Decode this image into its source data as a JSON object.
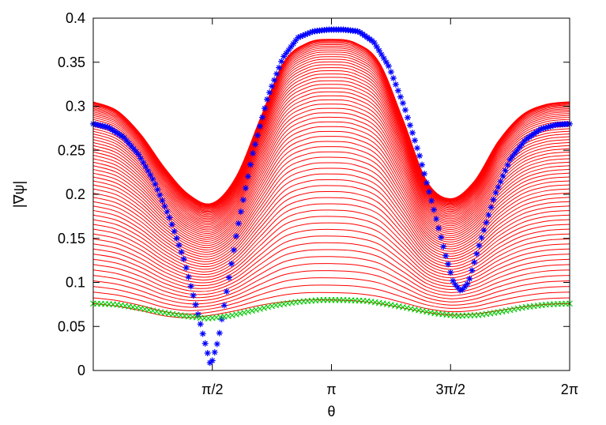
{
  "chart_data": {
    "type": "line",
    "title": "",
    "xlabel": "θ",
    "ylabel": "|∇ψ|",
    "xlim": [
      0,
      6.283185307179586
    ],
    "ylim": [
      0,
      0.4
    ],
    "grid": false,
    "legend": "none",
    "x_ticks": [
      {
        "value": 1.5707963267948966,
        "label": "π/2"
      },
      {
        "value": 3.141592653589793,
        "label": "π"
      },
      {
        "value": 4.71238898038469,
        "label": "3π/2"
      },
      {
        "value": 6.283185307179586,
        "label": "2π"
      }
    ],
    "y_ticks": [
      {
        "value": 0,
        "label": "0"
      },
      {
        "value": 0.05,
        "label": "0.05"
      },
      {
        "value": 0.1,
        "label": "0.1"
      },
      {
        "value": 0.15,
        "label": "0.15"
      },
      {
        "value": 0.2,
        "label": "0.2"
      },
      {
        "value": 0.25,
        "label": "0.25"
      },
      {
        "value": 0.3,
        "label": "0.3"
      },
      {
        "value": 0.35,
        "label": "0.35"
      },
      {
        "value": 0.4,
        "label": "0.4"
      }
    ],
    "colors": {
      "family": "#ff0000",
      "blue_markers": "#0000ff",
      "green_markers": "#00cc00",
      "frame": "#000000"
    },
    "family_curves": {
      "count": 60,
      "x": [
        0,
        0.314,
        0.628,
        0.942,
        1.257,
        1.571,
        1.885,
        2.199,
        2.513,
        2.827,
        3.142,
        3.456,
        3.77,
        4.084,
        4.398,
        4.712,
        5.027,
        5.341,
        5.655,
        5.969,
        6.283
      ],
      "lowest": [
        0.076,
        0.073,
        0.068,
        0.062,
        0.06,
        0.063,
        0.068,
        0.074,
        0.078,
        0.08,
        0.08,
        0.079,
        0.076,
        0.071,
        0.066,
        0.063,
        0.064,
        0.068,
        0.072,
        0.075,
        0.076
      ],
      "highest": [
        0.305,
        0.295,
        0.268,
        0.23,
        0.2,
        0.19,
        0.22,
        0.285,
        0.35,
        0.372,
        0.376,
        0.372,
        0.35,
        0.285,
        0.215,
        0.195,
        0.215,
        0.26,
        0.29,
        0.302,
        0.305
      ]
    },
    "series": [
      {
        "x": [
          0,
          0.2,
          0.4,
          0.6,
          0.8,
          1.0,
          1.2,
          1.35,
          1.45,
          1.55,
          1.65,
          1.75,
          1.9,
          2.1,
          2.3,
          2.5,
          2.7,
          2.9,
          3.1,
          3.3,
          3.5,
          3.7,
          3.9,
          4.1,
          4.3,
          4.5,
          4.65,
          4.75,
          4.85,
          4.95,
          5.1,
          5.3,
          5.5,
          5.7,
          5.9,
          6.1,
          6.283
        ],
        "y": [
          0.28,
          0.276,
          0.265,
          0.245,
          0.215,
          0.175,
          0.125,
          0.075,
          0.04,
          0.005,
          0.035,
          0.085,
          0.16,
          0.245,
          0.31,
          0.355,
          0.378,
          0.385,
          0.387,
          0.387,
          0.385,
          0.373,
          0.345,
          0.3,
          0.245,
          0.18,
          0.13,
          0.1,
          0.09,
          0.1,
          0.145,
          0.2,
          0.24,
          0.262,
          0.274,
          0.279,
          0.28
        ]
      },
      {
        "x": [
          0,
          0.3,
          0.6,
          0.9,
          1.2,
          1.5,
          1.8,
          2.1,
          2.4,
          2.7,
          3.0,
          3.3,
          3.6,
          3.9,
          4.2,
          4.5,
          4.8,
          5.1,
          5.4,
          5.7,
          6.0,
          6.283
        ],
        "y": [
          0.076,
          0.075,
          0.071,
          0.066,
          0.062,
          0.059,
          0.062,
          0.068,
          0.074,
          0.078,
          0.08,
          0.08,
          0.079,
          0.075,
          0.07,
          0.065,
          0.062,
          0.063,
          0.067,
          0.072,
          0.075,
          0.076
        ]
      }
    ]
  }
}
